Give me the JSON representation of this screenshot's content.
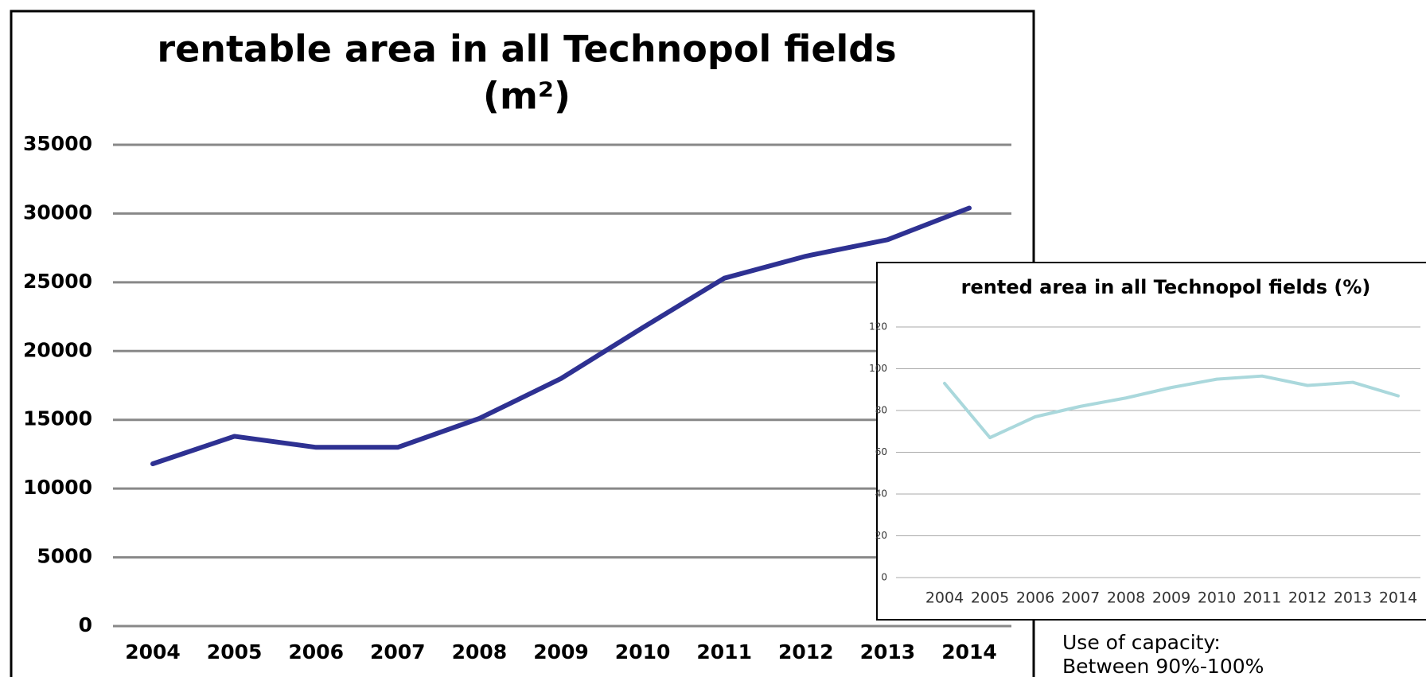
{
  "chart_data": [
    {
      "type": "line",
      "title": [
        "rentable area in all Technopol fields",
        "(m²)"
      ],
      "categories": [
        "2004",
        "2005",
        "2006",
        "2007",
        "2008",
        "2009",
        "2010",
        "2011",
        "2012",
        "2013",
        "2014"
      ],
      "values": [
        11800,
        13800,
        13000,
        13000,
        15100,
        18000,
        21700,
        25300,
        26900,
        28100,
        30400
      ],
      "color": "#2e3192",
      "ylim": [
        0,
        35000
      ],
      "yticks": [
        0,
        5000,
        10000,
        15000,
        20000,
        25000,
        30000,
        35000
      ],
      "grid": true
    },
    {
      "type": "line",
      "title": [
        "rented area in all Technopol fields (%)"
      ],
      "categories": [
        "2004",
        "2005",
        "2006",
        "2007",
        "2008",
        "2009",
        "2010",
        "2011",
        "2012",
        "2013",
        "2014"
      ],
      "values": [
        93,
        67,
        77,
        82,
        86,
        91,
        95,
        96.5,
        92,
        93.5,
        87
      ],
      "color": "#aad8dc",
      "ylim": [
        0,
        120
      ],
      "yticks": [
        0,
        20,
        40,
        60,
        80,
        100,
        120
      ],
      "grid": true
    }
  ],
  "note": [
    "Use of capacity:",
    "Between 90%-100%"
  ]
}
